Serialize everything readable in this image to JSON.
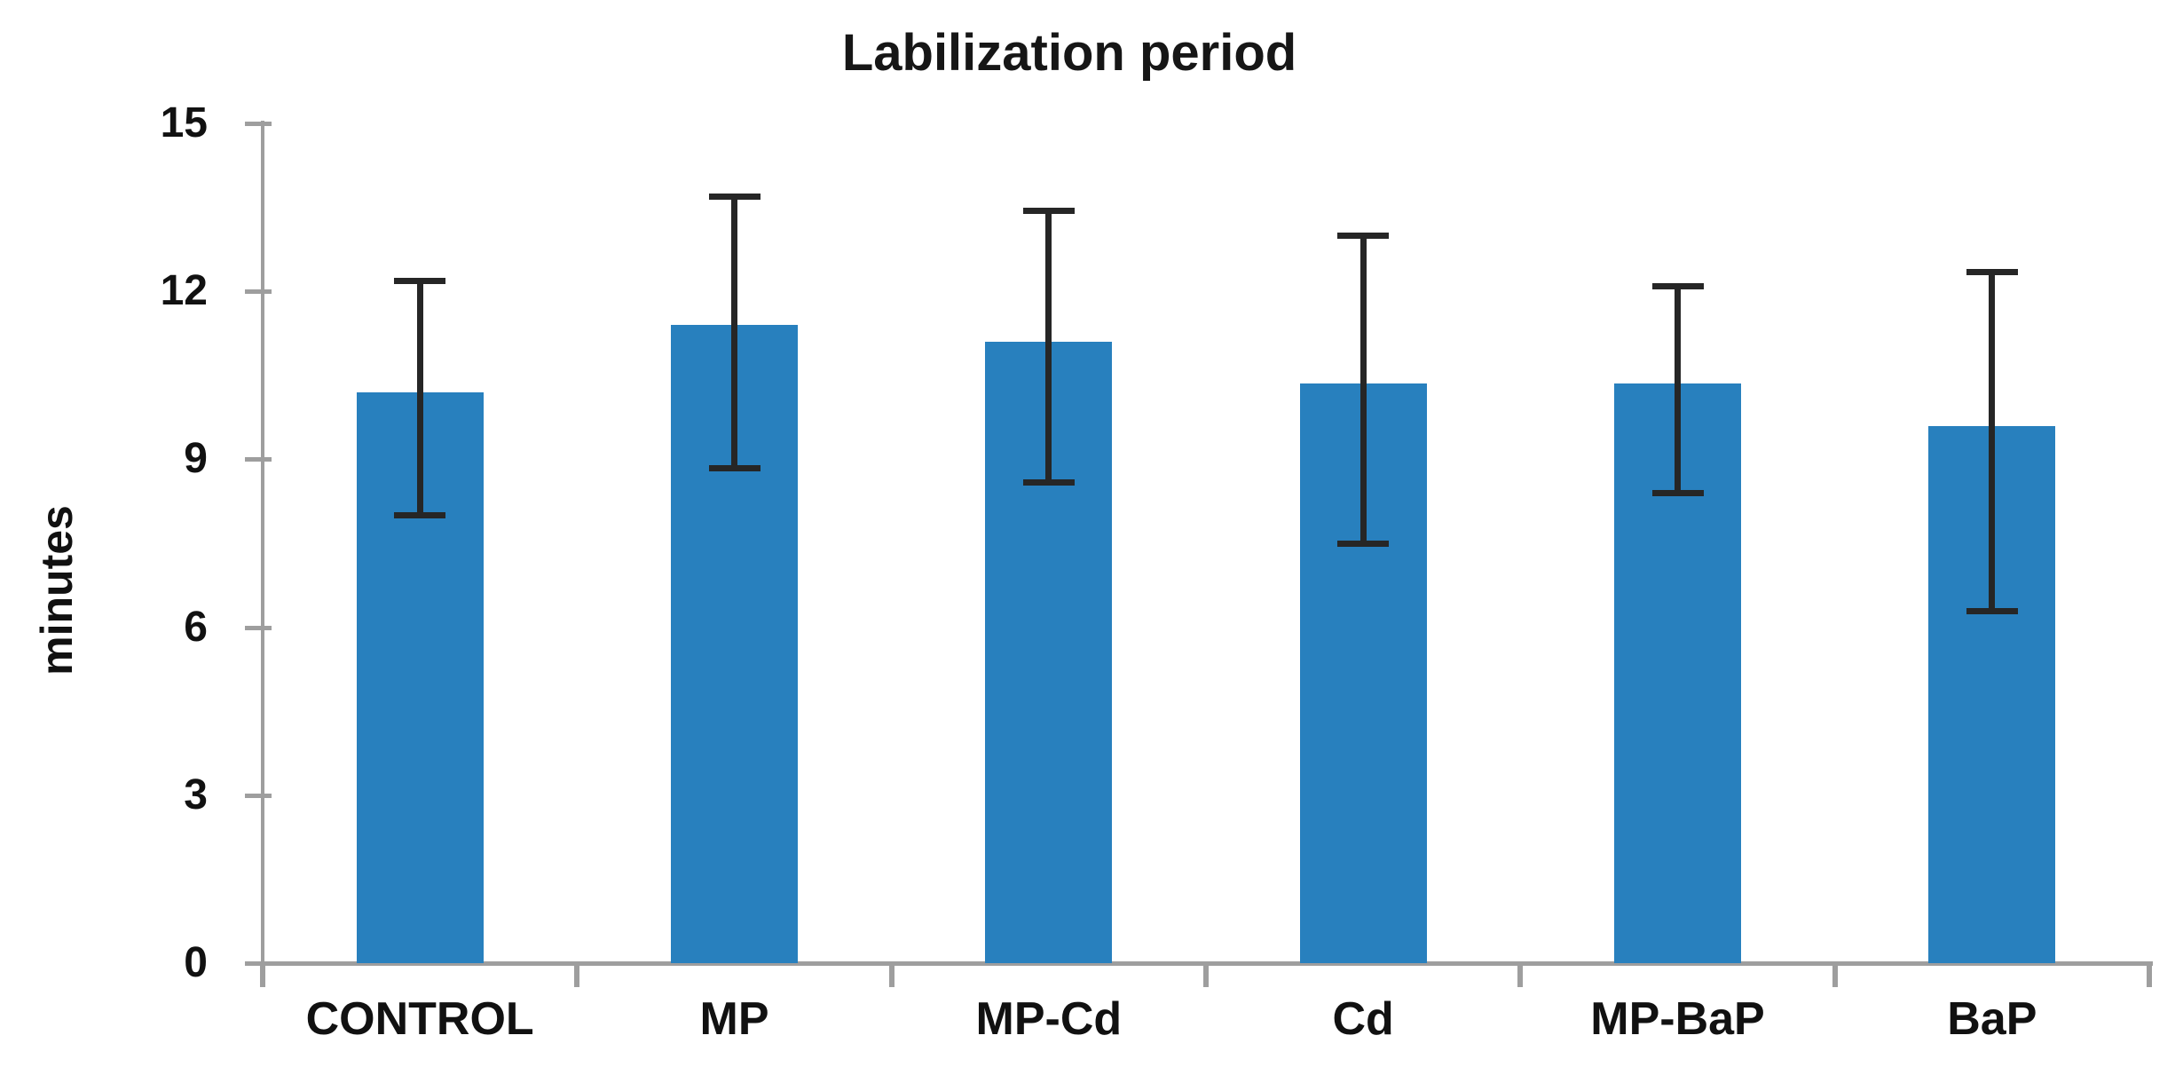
{
  "chart_data": {
    "type": "bar",
    "title": "Labilization period",
    "ylabel": "minutes",
    "xlabel": "",
    "categories": [
      "CONTROL",
      "MP",
      "MP-Cd",
      "Cd",
      "MP-BaP",
      "BaP"
    ],
    "values": [
      10.2,
      11.4,
      11.1,
      10.35,
      10.35,
      9.6
    ],
    "error_bars": {
      "upper": [
        12.2,
        13.7,
        13.45,
        13.0,
        12.1,
        12.35
      ],
      "lower": [
        8.0,
        8.85,
        8.6,
        7.5,
        8.4,
        6.3
      ]
    },
    "ylim": [
      0,
      15
    ],
    "yticks": [
      15,
      12,
      9,
      6,
      3,
      0
    ],
    "grid": false,
    "legend": null,
    "bar_color": "#2880BE",
    "error_color": "#262626",
    "axis_color": "#9E9E9E",
    "text_color": "#111111",
    "background_color": "#FFFFFF"
  }
}
